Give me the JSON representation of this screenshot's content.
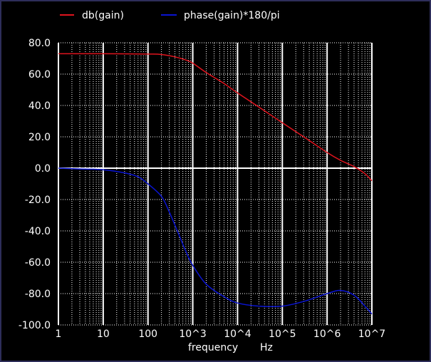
{
  "chart_data": {
    "type": "line",
    "xscale": "log",
    "xlim": [
      1,
      10000000
    ],
    "ylim": [
      -100,
      80
    ],
    "grid": true,
    "legend_position": "top",
    "xlabel": "frequency",
    "xunit": "Hz",
    "x_ticks": [
      {
        "value": 1,
        "label": "1"
      },
      {
        "value": 10,
        "label": "10"
      },
      {
        "value": 100,
        "label": "100"
      },
      {
        "value": 1000,
        "label": "10^3"
      },
      {
        "value": 10000,
        "label": "10^4"
      },
      {
        "value": 100000,
        "label": "10^5"
      },
      {
        "value": 1000000,
        "label": "10^6"
      },
      {
        "value": 10000000,
        "label": "10^7"
      }
    ],
    "y_ticks": [
      {
        "value": 80,
        "label": "80.0"
      },
      {
        "value": 60,
        "label": "60.0"
      },
      {
        "value": 40,
        "label": "40.0"
      },
      {
        "value": 20,
        "label": "20.0"
      },
      {
        "value": 0,
        "label": "0.0"
      },
      {
        "value": -20,
        "label": "-20.0"
      },
      {
        "value": -40,
        "label": "-40.0"
      },
      {
        "value": -60,
        "label": "-60.0"
      },
      {
        "value": -80,
        "label": "-80.0"
      },
      {
        "value": -100,
        "label": "-100.0"
      }
    ],
    "series": [
      {
        "name": "db(gain)",
        "color": "#e0141e",
        "points": [
          [
            1,
            73
          ],
          [
            10,
            73
          ],
          [
            100,
            72.8
          ],
          [
            200,
            72.5
          ],
          [
            400,
            71
          ],
          [
            700,
            69
          ],
          [
            1000,
            67
          ],
          [
            2000,
            61
          ],
          [
            5000,
            54
          ],
          [
            10000,
            48
          ],
          [
            30000,
            39
          ],
          [
            100000,
            29
          ],
          [
            300000,
            20
          ],
          [
            1000000,
            10
          ],
          [
            2000000,
            5
          ],
          [
            4000000,
            1
          ],
          [
            7000000,
            -3.5
          ],
          [
            10000000,
            -8
          ]
        ]
      },
      {
        "name": "phase(gain)*180/pi",
        "color": "#0a14d2",
        "points": [
          [
            1,
            0
          ],
          [
            3,
            -0.5
          ],
          [
            10,
            -1
          ],
          [
            30,
            -3
          ],
          [
            60,
            -5.5
          ],
          [
            100,
            -10
          ],
          [
            200,
            -18
          ],
          [
            300,
            -28
          ],
          [
            500,
            -43
          ],
          [
            700,
            -53
          ],
          [
            1000,
            -62
          ],
          [
            2000,
            -74
          ],
          [
            5000,
            -82
          ],
          [
            10000,
            -86
          ],
          [
            30000,
            -88
          ],
          [
            100000,
            -88
          ],
          [
            300000,
            -85
          ],
          [
            1000000,
            -80
          ],
          [
            2000000,
            -78
          ],
          [
            4000000,
            -81
          ],
          [
            7000000,
            -88
          ],
          [
            10000000,
            -93
          ]
        ]
      }
    ]
  }
}
